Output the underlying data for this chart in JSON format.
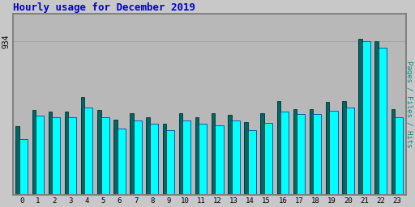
{
  "title": "Hourly usage for December 2019",
  "title_color": "#0000cc",
  "title_fontsize": 9,
  "ylabel_right": "Pages / Files / Hits",
  "ylabel_right_color": "#008888",
  "background_color": "#c8c8c8",
  "plot_bg_color": "#b8b8b8",
  "border_color": "#808080",
  "hours": [
    0,
    1,
    2,
    3,
    4,
    5,
    6,
    7,
    8,
    9,
    10,
    11,
    12,
    13,
    14,
    15,
    16,
    17,
    18,
    19,
    20,
    21,
    22,
    23
  ],
  "hits": [
    340,
    480,
    475,
    475,
    530,
    475,
    405,
    455,
    435,
    395,
    455,
    435,
    425,
    455,
    395,
    440,
    505,
    490,
    490,
    510,
    530,
    934,
    895,
    475
  ],
  "pages": [
    420,
    515,
    505,
    505,
    595,
    515,
    460,
    495,
    475,
    435,
    495,
    475,
    495,
    485,
    445,
    495,
    570,
    520,
    520,
    565,
    570,
    950,
    935,
    520
  ],
  "ytick_label": "934",
  "ytick_value": 934,
  "bar_color_hits": "#00ffff",
  "bar_color_pages": "#006666",
  "bar_edge_hits": "#0044aa",
  "bar_edge_pages": "#003333",
  "ylim": [
    0,
    1100
  ]
}
